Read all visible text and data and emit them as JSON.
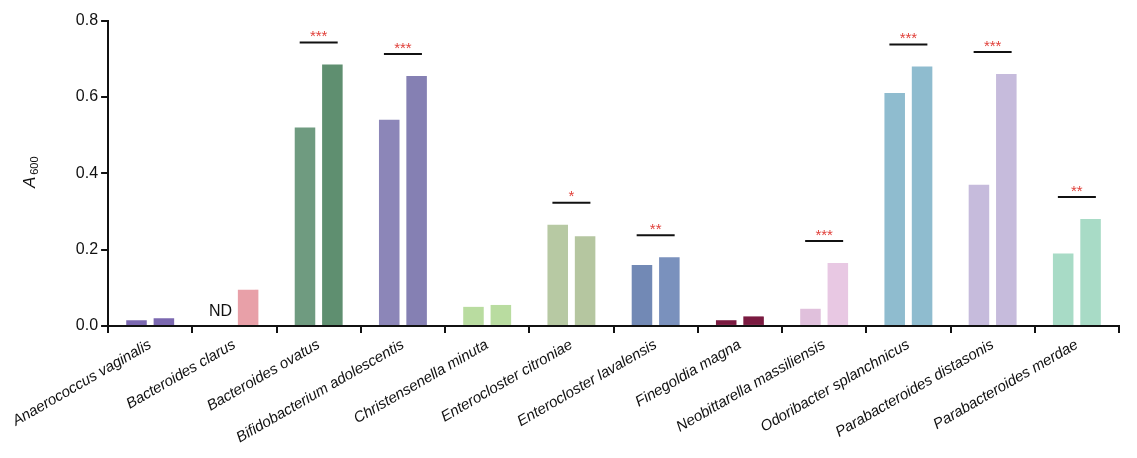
{
  "chart_data": {
    "type": "bar",
    "ylabel": "A$_{600}$",
    "categories": [
      "Anaerococcus vaginalis",
      "Bacteroides clarus",
      "Bacteroides ovatus",
      "Bifidobacterium adolescentis",
      "Christensenella minuta",
      "Enterocloster citroniae",
      "Enterocloster lavalensis",
      "Finegoldia magna",
      "Neobittarella massiliensis",
      "Odoribacter splanchnicus",
      "Parabacteroides distasonis",
      "Parabacteroides merdae"
    ],
    "series": [
      {
        "values": [
          0.015,
          0,
          0.52,
          0.54,
          0.05,
          0.265,
          0.16,
          0.015,
          0.045,
          0.61,
          0.37,
          0.19
        ],
        "colors": [
          "#7b68b0",
          "#e07a80",
          "#6f9b80",
          "#8c86b8",
          "#b9dca0",
          "#b7c9a3",
          "#7289b5",
          "#7a1a40",
          "#e0c0dc",
          "#8fbccf",
          "#c6bbdc",
          "#a8dbc6"
        ]
      },
      {
        "values": [
          0.02,
          0.095,
          0.685,
          0.655,
          0.055,
          0.235,
          0.18,
          0.025,
          0.165,
          0.68,
          0.66,
          0.28
        ],
        "colors": [
          "#7b68b0",
          "#e8a0a8",
          "#5f8f70",
          "#8580b3",
          "#b9dca0",
          "#b5c6a0",
          "#7a91bd",
          "#7a1a40",
          "#e8c8e3",
          "#8fbccf",
          "#c6bbdc",
          "#a8dbc6"
        ]
      }
    ],
    "ylim": [
      0,
      0.8
    ],
    "yticks": [
      {
        "value": 0,
        "label": "0.0"
      },
      {
        "value": 0.2,
        "label": "0.2"
      },
      {
        "value": 0.4,
        "label": "0.4"
      },
      {
        "value": 0.6,
        "label": "0.6"
      },
      {
        "value": 0.8,
        "label": "0.8"
      }
    ],
    "grid": false,
    "legend": false,
    "annotations": [
      {
        "text": "ND",
        "x": "Bacteroides clarus",
        "y": 0
      },
      {
        "text": "***",
        "x": "Bacteroides ovatus",
        "y": 0.685
      },
      {
        "text": "***",
        "x": "Bifidobacterium adolescentis",
        "y": 0.655
      },
      {
        "text": "*",
        "x": "Enterocloster citroniae",
        "y": 0.265
      },
      {
        "text": "**",
        "x": "Enterocloster lavalensis",
        "y": 0.18
      },
      {
        "text": "***",
        "x": "Neobittarella massiliensis",
        "y": 0.165
      },
      {
        "text": "***",
        "x": "Odoribacter splanchnicus",
        "y": 0.68
      },
      {
        "text": "***",
        "x": "Parabacteroides distasonis",
        "y": 0.66
      },
      {
        "text": "**",
        "x": "Parabacteroides merdae",
        "y": 0.28
      }
    ]
  }
}
